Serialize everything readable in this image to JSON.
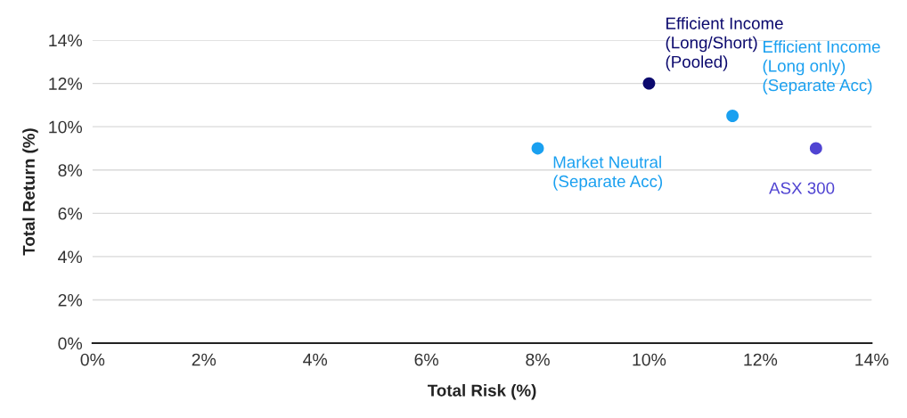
{
  "chart_data": {
    "type": "scatter",
    "xlabel": "Total Risk (%)",
    "ylabel": "Total Return (%)",
    "xlim": [
      0,
      14
    ],
    "ylim": [
      0,
      14
    ],
    "xticks": [
      {
        "value": 0,
        "label": "0%"
      },
      {
        "value": 2,
        "label": "2%"
      },
      {
        "value": 4,
        "label": "4%"
      },
      {
        "value": 6,
        "label": "6%"
      },
      {
        "value": 8,
        "label": "8%"
      },
      {
        "value": 10,
        "label": "10%"
      },
      {
        "value": 12,
        "label": "12%"
      },
      {
        "value": 14,
        "label": "14%"
      }
    ],
    "yticks": [
      {
        "value": 0,
        "label": "0%"
      },
      {
        "value": 2,
        "label": "2%"
      },
      {
        "value": 4,
        "label": "4%"
      },
      {
        "value": 6,
        "label": "6%"
      },
      {
        "value": 8,
        "label": "8%"
      },
      {
        "value": 10,
        "label": "10%"
      },
      {
        "value": 12,
        "label": "12%"
      },
      {
        "value": 14,
        "label": "14%"
      }
    ],
    "grid": "y",
    "marker": "circle",
    "series": [
      {
        "name": "Market Neutral\n(Separate Acc)",
        "color": "#1aa0f0",
        "x": [
          8
        ],
        "values": [
          9
        ]
      },
      {
        "name": "Efficient Income\n(Long/Short)\n(Pooled)",
        "color": "#0c0a6e",
        "x": [
          10
        ],
        "values": [
          12
        ]
      },
      {
        "name": "Efficient Income\n(Long only)\n(Separate Acc)",
        "color": "#1aa0f0",
        "x": [
          11.5
        ],
        "values": [
          10.5
        ]
      },
      {
        "name": "ASX 300",
        "color": "#5044d2",
        "x": [
          13
        ],
        "values": [
          9
        ]
      }
    ]
  }
}
